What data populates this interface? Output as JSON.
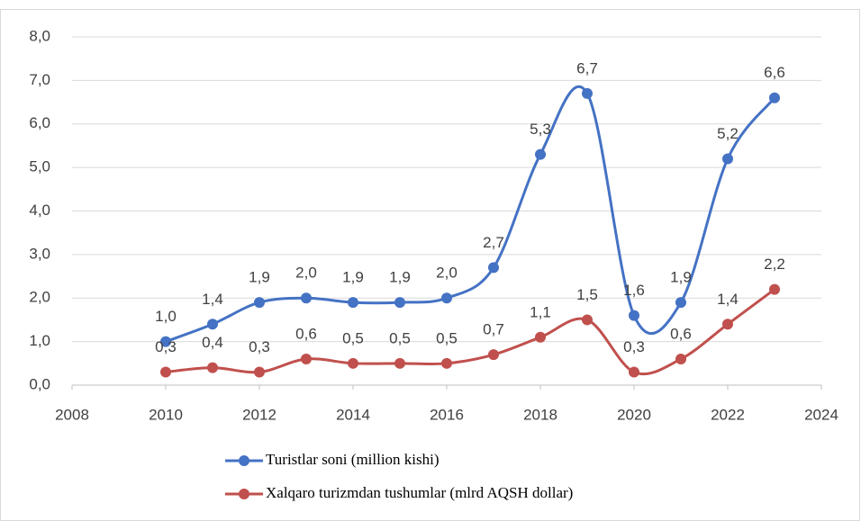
{
  "chart_data": {
    "type": "scatter_smooth",
    "x": [
      2010,
      2011,
      2012,
      2013,
      2014,
      2015,
      2016,
      2017,
      2018,
      2019,
      2020,
      2021,
      2022,
      2023
    ],
    "series": [
      {
        "name": "Turistlar soni (million kishi)",
        "color": "#4472c4",
        "values": [
          1.0,
          1.4,
          1.9,
          2.0,
          1.9,
          1.9,
          2.0,
          2.7,
          5.3,
          6.7,
          1.6,
          1.9,
          5.2,
          6.6
        ],
        "value_labels": [
          "1,0",
          "1,4",
          "1,9",
          "2,0",
          "1,9",
          "1,9",
          "2,0",
          "2,7",
          "5,3",
          "6,7",
          "1,6",
          "1,9",
          "5,2",
          "6,6"
        ]
      },
      {
        "name": "Xalqaro turizmdan tushumlar (mlrd AQSH dollar)",
        "color": "#c0504d",
        "values": [
          0.3,
          0.4,
          0.3,
          0.6,
          0.5,
          0.5,
          0.5,
          0.7,
          1.1,
          1.5,
          0.3,
          0.6,
          1.4,
          2.2
        ],
        "value_labels": [
          "0,3",
          "0,4",
          "0,3",
          "0,6",
          "0,5",
          "0,5",
          "0,5",
          "0,7",
          "1,1",
          "1,5",
          "0,3",
          "0,6",
          "1,4",
          "2,2"
        ]
      }
    ],
    "xlim": [
      2008,
      2024
    ],
    "xticks": [
      2008,
      2010,
      2012,
      2014,
      2016,
      2018,
      2020,
      2022,
      2024
    ],
    "ylim": [
      0,
      8
    ],
    "yticks": [
      {
        "value": 0,
        "label": "0,0"
      },
      {
        "value": 1,
        "label": "1,0"
      },
      {
        "value": 2,
        "label": "2,0"
      },
      {
        "value": 3,
        "label": "3,0"
      },
      {
        "value": 4,
        "label": "4,0"
      },
      {
        "value": 5,
        "label": "5,0"
      },
      {
        "value": 6,
        "label": "6,0"
      },
      {
        "value": 7,
        "label": "7,0"
      },
      {
        "value": 8,
        "label": "8,0"
      }
    ],
    "grid": true,
    "legend": "bottom"
  }
}
